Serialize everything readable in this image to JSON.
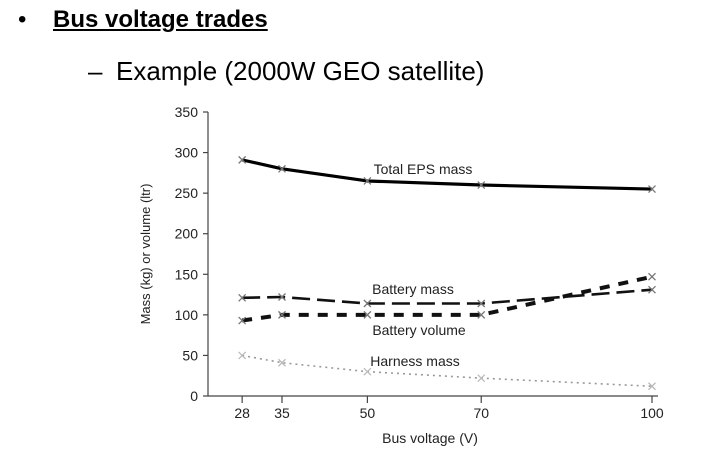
{
  "slide": {
    "bullet": "•",
    "heading": "Bus voltage trades",
    "dash": "–",
    "subheading": "Example (2000W GEO satellite)"
  },
  "chart_data": {
    "type": "line",
    "title": "",
    "xlabel": "Bus voltage (V)",
    "ylabel": "Mass (kg) or volume (ltr)",
    "x": [
      28,
      35,
      50,
      70,
      100
    ],
    "xticks": [
      "28",
      "35",
      "50",
      "70",
      "100"
    ],
    "xlim": [
      22,
      100
    ],
    "ylim": [
      0,
      350
    ],
    "yticks": [
      "0",
      "50",
      "100",
      "150",
      "200",
      "250",
      "300",
      "350"
    ],
    "grid": false,
    "legend": "none",
    "series": [
      {
        "name": "Total EPS mass",
        "values": [
          291,
          280,
          265,
          260,
          255
        ],
        "style": "solid",
        "color": "#000000"
      },
      {
        "name": "Battery mass",
        "values": [
          121,
          122,
          114,
          114,
          131
        ],
        "style": "longdash",
        "color": "#111111"
      },
      {
        "name": "Battery volume",
        "values": [
          93,
          100,
          100,
          100,
          147
        ],
        "style": "shortdash",
        "color": "#111111"
      },
      {
        "name": "Harness mass",
        "values": [
          50,
          41,
          30,
          22,
          12
        ],
        "style": "dotted",
        "color": "#999999"
      }
    ]
  }
}
